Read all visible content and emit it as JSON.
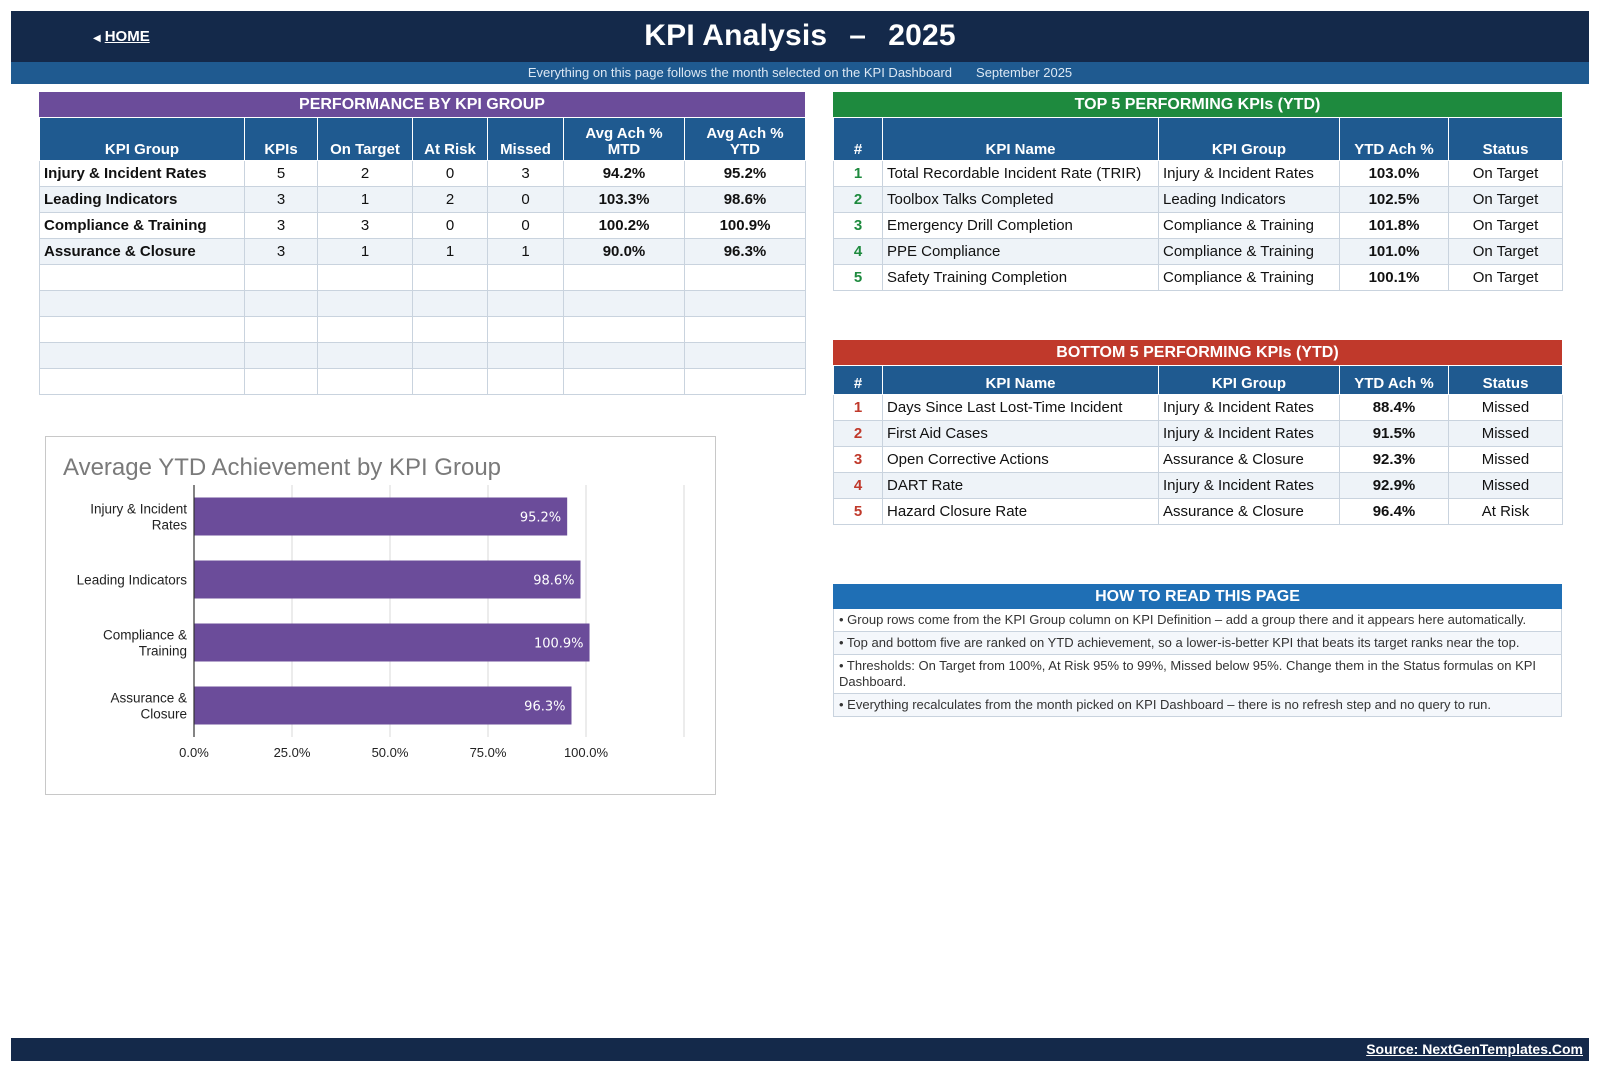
{
  "header": {
    "home_label": "HOME",
    "title_main": "KPI Analysis",
    "title_dash": "–",
    "title_year": "2025",
    "subtitle": "Everything on this page follows the month selected on the KPI Dashboard",
    "period": "September 2025"
  },
  "performance": {
    "band": "PERFORMANCE BY KPI GROUP",
    "columns": [
      "KPI Group",
      "KPIs",
      "On Target",
      "At Risk",
      "Missed",
      "Avg Ach % MTD",
      "Avg Ach % YTD"
    ],
    "col_mtd_line1": "Avg Ach %",
    "col_mtd_line2": "MTD",
    "col_ytd_line1": "Avg Ach %",
    "col_ytd_line2": "YTD",
    "rows": [
      {
        "group": "Injury & Incident Rates",
        "kpis": "5",
        "on_target": "2",
        "at_risk": "0",
        "missed": "3",
        "mtd": "94.2%",
        "ytd": "95.2%"
      },
      {
        "group": "Leading Indicators",
        "kpis": "3",
        "on_target": "1",
        "at_risk": "2",
        "missed": "0",
        "mtd": "103.3%",
        "ytd": "98.6%"
      },
      {
        "group": "Compliance & Training",
        "kpis": "3",
        "on_target": "3",
        "at_risk": "0",
        "missed": "0",
        "mtd": "100.2%",
        "ytd": "100.9%"
      },
      {
        "group": "Assurance & Closure",
        "kpis": "3",
        "on_target": "1",
        "at_risk": "1",
        "missed": "1",
        "mtd": "90.0%",
        "ytd": "96.3%"
      }
    ],
    "empty_rows": 5
  },
  "top5": {
    "band": "TOP 5 PERFORMING KPIs  (YTD)",
    "columns": [
      "#",
      "KPI Name",
      "KPI Group",
      "YTD Ach %",
      "Status"
    ],
    "rows": [
      {
        "rank": "1",
        "name": "Total Recordable Incident Rate (TRIR)",
        "group": "Injury & Incident Rates",
        "ach": "103.0%",
        "status": "On Target"
      },
      {
        "rank": "2",
        "name": "Toolbox Talks Completed",
        "group": "Leading Indicators",
        "ach": "102.5%",
        "status": "On Target"
      },
      {
        "rank": "3",
        "name": "Emergency Drill Completion",
        "group": "Compliance & Training",
        "ach": "101.8%",
        "status": "On Target"
      },
      {
        "rank": "4",
        "name": "PPE Compliance",
        "group": "Compliance & Training",
        "ach": "101.0%",
        "status": "On Target"
      },
      {
        "rank": "5",
        "name": "Safety Training Completion",
        "group": "Compliance & Training",
        "ach": "100.1%",
        "status": "On Target"
      }
    ]
  },
  "bottom5": {
    "band": "BOTTOM 5 PERFORMING KPIs  (YTD)",
    "columns": [
      "#",
      "KPI Name",
      "KPI Group",
      "YTD Ach %",
      "Status"
    ],
    "rows": [
      {
        "rank": "1",
        "name": "Days Since Last Lost-Time Incident",
        "group": "Injury & Incident Rates",
        "ach": "88.4%",
        "status": "Missed"
      },
      {
        "rank": "2",
        "name": "First Aid Cases",
        "group": "Injury & Incident Rates",
        "ach": "91.5%",
        "status": "Missed"
      },
      {
        "rank": "3",
        "name": "Open Corrective Actions",
        "group": "Assurance & Closure",
        "ach": "92.3%",
        "status": "Missed"
      },
      {
        "rank": "4",
        "name": "DART Rate",
        "group": "Injury & Incident Rates",
        "ach": "92.9%",
        "status": "Missed"
      },
      {
        "rank": "5",
        "name": "Hazard Closure Rate",
        "group": "Assurance & Closure",
        "ach": "96.4%",
        "status": "At Risk"
      }
    ]
  },
  "howto": {
    "band": "HOW TO READ THIS PAGE",
    "notes": [
      "•  Group rows come from the KPI Group column on KPI Definition – add a group there and it appears here automatically.",
      "•  Top and bottom five are ranked on YTD achievement, so a lower-is-better KPI that beats its target ranks near the top.",
      "•  Thresholds: On Target from 100%, At Risk 95% to 99%, Missed below 95%. Change them in the Status formulas on KPI Dashboard.",
      "•  Everything recalculates from the month picked on KPI Dashboard – there is no refresh step and no query to run."
    ]
  },
  "chart_data": {
    "type": "bar",
    "orientation": "horizontal",
    "title": "Average YTD Achievement by KPI Group",
    "categories": [
      [
        "Injury & Incident",
        "Rates"
      ],
      [
        "Leading Indicators"
      ],
      [
        "Compliance &",
        "Training"
      ],
      [
        "Assurance &",
        "Closure"
      ]
    ],
    "values": [
      95.2,
      98.6,
      100.9,
      96.3
    ],
    "data_labels": [
      "95.2%",
      "98.6%",
      "100.9%",
      "96.3%"
    ],
    "xticks": [
      "0.0%",
      "25.0%",
      "50.0%",
      "75.0%",
      "100.0%"
    ],
    "xlim": [
      0,
      125
    ],
    "grid": true,
    "bar_color": "#6b4c9a"
  },
  "footer": {
    "source": "Source: NextGenTemplates.Com"
  },
  "colors": {
    "navy": "#14294a",
    "blue": "#1f5a90",
    "purple": "#6b4c9a",
    "green": "#1e8a3e",
    "red": "#c0392b"
  }
}
